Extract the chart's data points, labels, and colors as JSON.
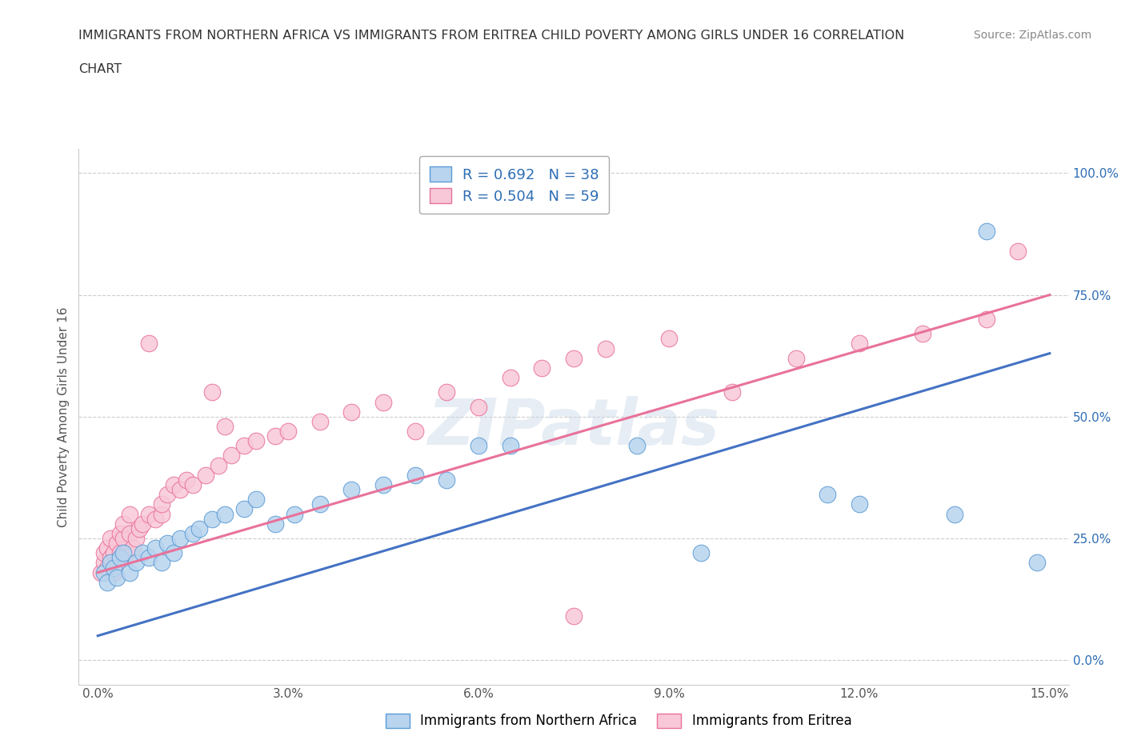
{
  "title_line1": "IMMIGRANTS FROM NORTHERN AFRICA VS IMMIGRANTS FROM ERITREA CHILD POVERTY AMONG GIRLS UNDER 16 CORRELATION",
  "title_line2": "CHART",
  "source": "Source: ZipAtlas.com",
  "ylabel": "Child Poverty Among Girls Under 16",
  "legend_bottom_label1": "Immigrants from Northern Africa",
  "legend_bottom_label2": "Immigrants from Eritrea",
  "R_blue": 0.692,
  "N_blue": 38,
  "R_pink": 0.504,
  "N_pink": 59,
  "xlim": [
    -0.3,
    15.3
  ],
  "ylim": [
    -5.0,
    105.0
  ],
  "xticks": [
    0.0,
    3.0,
    6.0,
    9.0,
    12.0,
    15.0
  ],
  "xtick_labels": [
    "0.0%",
    "3.0%",
    "6.0%",
    "9.0%",
    "12.0%",
    "15.0%"
  ],
  "yticks": [
    0.0,
    25.0,
    50.0,
    75.0,
    100.0
  ],
  "ytick_labels": [
    "0.0%",
    "25.0%",
    "50.0%",
    "75.0%",
    "100.0%"
  ],
  "color_blue": "#b8d4ee",
  "color_blue_line": "#4472c4",
  "color_blue_edge": "#5b9bd5",
  "color_pink": "#f8c8d8",
  "color_pink_line": "#e8729a",
  "color_pink_edge": "#e8729a",
  "color_text_blue": "#2e6db4",
  "color_text_dark": "#333333",
  "watermark": "ZIPatlas",
  "blue_scatter_x": [
    0.1,
    0.15,
    0.2,
    0.25,
    0.3,
    0.35,
    0.4,
    0.5,
    0.6,
    0.7,
    0.8,
    0.9,
    1.0,
    1.1,
    1.2,
    1.3,
    1.5,
    1.6,
    1.8,
    2.0,
    2.3,
    2.5,
    2.8,
    3.1,
    3.5,
    4.0,
    4.5,
    5.0,
    5.5,
    6.0,
    6.5,
    8.5,
    9.5,
    11.5,
    12.0,
    13.5,
    14.0,
    14.8
  ],
  "blue_scatter_y": [
    18.0,
    16.0,
    20.0,
    19.0,
    17.0,
    21.0,
    22.0,
    18.0,
    20.0,
    22.0,
    21.0,
    23.0,
    20.0,
    24.0,
    22.0,
    25.0,
    26.0,
    27.0,
    29.0,
    30.0,
    31.0,
    33.0,
    28.0,
    30.0,
    32.0,
    35.0,
    36.0,
    38.0,
    37.0,
    44.0,
    44.0,
    44.0,
    22.0,
    34.0,
    32.0,
    30.0,
    88.0,
    20.0
  ],
  "pink_scatter_x": [
    0.05,
    0.1,
    0.1,
    0.15,
    0.15,
    0.2,
    0.2,
    0.25,
    0.25,
    0.3,
    0.3,
    0.35,
    0.35,
    0.4,
    0.4,
    0.45,
    0.5,
    0.5,
    0.55,
    0.6,
    0.65,
    0.7,
    0.8,
    0.9,
    1.0,
    1.0,
    1.1,
    1.2,
    1.3,
    1.4,
    1.5,
    1.7,
    1.9,
    2.1,
    2.3,
    2.5,
    2.8,
    3.0,
    3.5,
    4.0,
    4.5,
    5.0,
    5.5,
    6.0,
    6.5,
    7.0,
    7.5,
    8.0,
    9.0,
    10.0,
    11.0,
    12.0,
    13.0,
    14.0,
    14.5,
    0.8,
    1.8,
    2.0,
    7.5
  ],
  "pink_scatter_y": [
    18.0,
    20.0,
    22.0,
    19.0,
    23.0,
    21.0,
    25.0,
    18.0,
    22.0,
    24.0,
    20.0,
    26.0,
    22.0,
    25.0,
    28.0,
    22.0,
    26.0,
    30.0,
    23.0,
    25.0,
    27.0,
    28.0,
    30.0,
    29.0,
    30.0,
    32.0,
    34.0,
    36.0,
    35.0,
    37.0,
    36.0,
    38.0,
    40.0,
    42.0,
    44.0,
    45.0,
    46.0,
    47.0,
    49.0,
    51.0,
    53.0,
    47.0,
    55.0,
    52.0,
    58.0,
    60.0,
    62.0,
    64.0,
    66.0,
    55.0,
    62.0,
    65.0,
    67.0,
    70.0,
    84.0,
    65.0,
    55.0,
    48.0,
    9.0
  ],
  "blue_line_x0": 0.0,
  "blue_line_x1": 15.0,
  "blue_line_y0": 5.0,
  "blue_line_y1": 63.0,
  "pink_line_x0": 0.0,
  "pink_line_x1": 15.0,
  "pink_line_y0": 18.0,
  "pink_line_y1": 75.0,
  "background_color": "#ffffff",
  "grid_color": "#cccccc"
}
